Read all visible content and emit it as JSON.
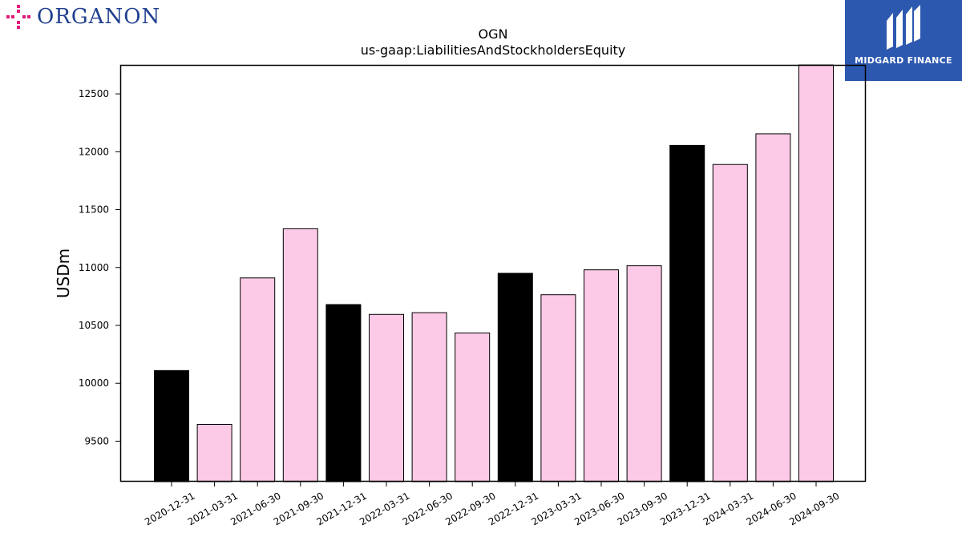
{
  "logos": {
    "left_text": "ORGANON",
    "right_text": "MIDGARD FINANCE"
  },
  "colors": {
    "annual_bar": "#000000",
    "quarter_bar": "#fccae6",
    "brand_blue": "#2d58b0",
    "organon_blue": "#1f3f8f",
    "organon_pink": "#e0197d"
  },
  "chart_data": {
    "type": "bar",
    "title": "OGN",
    "subtitle": "us-gaap:LiabilitiesAndStockholdersEquity",
    "xlabel": "",
    "ylabel": "USDm",
    "ylim": [
      9150,
      12750
    ],
    "yticks": [
      9500,
      10000,
      10500,
      11000,
      11500,
      12000,
      12500
    ],
    "categories": [
      "2020-12-31",
      "2021-03-31",
      "2021-06-30",
      "2021-09-30",
      "2021-12-31",
      "2022-03-31",
      "2022-06-30",
      "2022-09-30",
      "2022-12-31",
      "2023-03-31",
      "2023-06-30",
      "2023-09-30",
      "2023-12-31",
      "2024-03-31",
      "2024-06-30",
      "2024-09-30"
    ],
    "values": [
      10110,
      9645,
      10910,
      11335,
      10680,
      10595,
      10610,
      10435,
      10950,
      10765,
      10980,
      11015,
      12055,
      11890,
      12155,
      12760
    ],
    "highlight": [
      true,
      false,
      false,
      false,
      true,
      false,
      false,
      false,
      true,
      false,
      false,
      false,
      true,
      false,
      false,
      false
    ],
    "grid": false,
    "legend": "none"
  }
}
